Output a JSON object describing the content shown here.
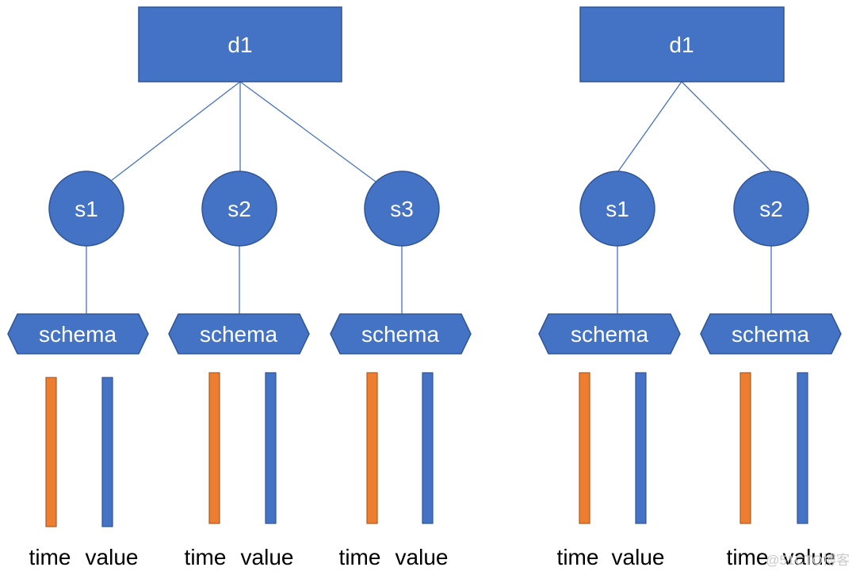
{
  "colors": {
    "blue": "#4472c4",
    "blue_border": "#2f5597",
    "orange": "#ed7d31",
    "orange_border": "#ae5a21",
    "line": "#4472c4"
  },
  "left_tree": {
    "device": "d1",
    "series": [
      {
        "label": "s1",
        "schema": "schema",
        "time_label": "time",
        "value_label": "value"
      },
      {
        "label": "s2",
        "schema": "schema",
        "time_label": "time",
        "value_label": "value"
      },
      {
        "label": "s3",
        "schema": "schema",
        "time_label": "time",
        "value_label": "value"
      }
    ]
  },
  "right_tree": {
    "device": "d1",
    "series": [
      {
        "label": "s1",
        "schema": "schema",
        "time_label": "time",
        "value_label": "value"
      },
      {
        "label": "s2",
        "schema": "schema",
        "time_label": "time",
        "value_label": "value"
      }
    ]
  },
  "watermark": "@51CTO博客"
}
